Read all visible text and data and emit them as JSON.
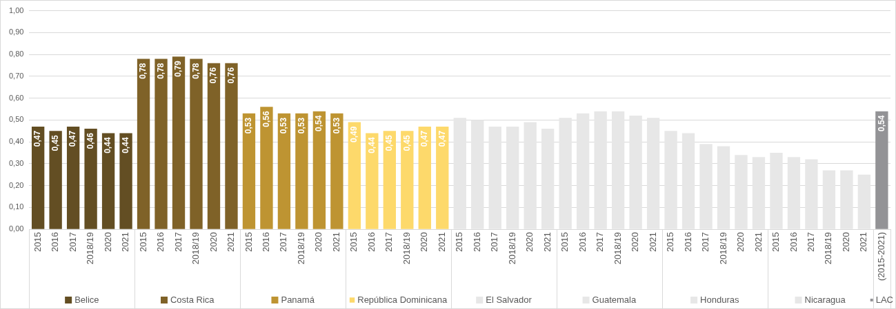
{
  "chart_data": {
    "type": "bar",
    "categories": [
      "2015",
      "2016",
      "2017",
      "2018/19",
      "2020",
      "2021",
      "2015",
      "2016",
      "2017",
      "2018/19",
      "2020",
      "2021",
      "2015",
      "2016",
      "2017",
      "2018/19",
      "2020",
      "2021",
      "2015",
      "2016",
      "2017",
      "2018/19",
      "2020",
      "2021",
      "2015",
      "2016",
      "2017",
      "2018/19",
      "2020",
      "2021",
      "2015",
      "2016",
      "2017",
      "2018/19",
      "2020",
      "2021",
      "2015",
      "2016",
      "2017",
      "2018/19",
      "2020",
      "2021",
      "2015",
      "2016",
      "2017",
      "2018/19",
      "2020",
      "2021",
      "(2015-2021)"
    ],
    "series": [
      {
        "name": "Belice",
        "color": "#634e23",
        "values": [
          0.47,
          0.45,
          0.47,
          0.46,
          0.44,
          0.44,
          null,
          null,
          null,
          null,
          null,
          null,
          null,
          null,
          null,
          null,
          null,
          null,
          null,
          null,
          null,
          null,
          null,
          null,
          null,
          null,
          null,
          null,
          null,
          null,
          null,
          null,
          null,
          null,
          null,
          null,
          null,
          null,
          null,
          null,
          null,
          null,
          null,
          null,
          null,
          null,
          null,
          null,
          null
        ],
        "value_labels": [
          "0,47",
          "0,45",
          "0,47",
          "0,46",
          "0,44",
          "0,44",
          null,
          null,
          null,
          null,
          null,
          null,
          null,
          null,
          null,
          null,
          null,
          null,
          null,
          null,
          null,
          null,
          null,
          null,
          null,
          null,
          null,
          null,
          null,
          null,
          null,
          null,
          null,
          null,
          null,
          null,
          null,
          null,
          null,
          null,
          null,
          null,
          null,
          null,
          null,
          null,
          null,
          null,
          null
        ]
      },
      {
        "name": "Costa Rica",
        "color": "#7f6228",
        "values": [
          null,
          null,
          null,
          null,
          null,
          null,
          0.78,
          0.78,
          0.79,
          0.78,
          0.76,
          0.76,
          null,
          null,
          null,
          null,
          null,
          null,
          null,
          null,
          null,
          null,
          null,
          null,
          null,
          null,
          null,
          null,
          null,
          null,
          null,
          null,
          null,
          null,
          null,
          null,
          null,
          null,
          null,
          null,
          null,
          null,
          null,
          null,
          null,
          null,
          null,
          null,
          null
        ],
        "value_labels": [
          null,
          null,
          null,
          null,
          null,
          null,
          "0,78",
          "0,78",
          "0,79",
          "0,78",
          "0,76",
          "0,76",
          null,
          null,
          null,
          null,
          null,
          null,
          null,
          null,
          null,
          null,
          null,
          null,
          null,
          null,
          null,
          null,
          null,
          null,
          null,
          null,
          null,
          null,
          null,
          null,
          null,
          null,
          null,
          null,
          null,
          null,
          null,
          null,
          null,
          null,
          null,
          null,
          null
        ]
      },
      {
        "name": "Panamá",
        "color": "#be9432",
        "values": [
          null,
          null,
          null,
          null,
          null,
          null,
          null,
          null,
          null,
          null,
          null,
          null,
          0.53,
          0.56,
          0.53,
          0.53,
          0.54,
          0.53,
          null,
          null,
          null,
          null,
          null,
          null,
          null,
          null,
          null,
          null,
          null,
          null,
          null,
          null,
          null,
          null,
          null,
          null,
          null,
          null,
          null,
          null,
          null,
          null,
          null,
          null,
          null,
          null,
          null,
          null,
          null
        ],
        "value_labels": [
          null,
          null,
          null,
          null,
          null,
          null,
          null,
          null,
          null,
          null,
          null,
          null,
          "0,53",
          "0,56",
          "0,53",
          "0,53",
          "0,54",
          "0,53",
          null,
          null,
          null,
          null,
          null,
          null,
          null,
          null,
          null,
          null,
          null,
          null,
          null,
          null,
          null,
          null,
          null,
          null,
          null,
          null,
          null,
          null,
          null,
          null,
          null,
          null,
          null,
          null,
          null,
          null,
          null
        ]
      },
      {
        "name": "República Dominicana",
        "color": "#fdd96b",
        "values": [
          null,
          null,
          null,
          null,
          null,
          null,
          null,
          null,
          null,
          null,
          null,
          null,
          null,
          null,
          null,
          null,
          null,
          null,
          0.49,
          0.44,
          0.45,
          0.45,
          0.47,
          0.47,
          null,
          null,
          null,
          null,
          null,
          null,
          null,
          null,
          null,
          null,
          null,
          null,
          null,
          null,
          null,
          null,
          null,
          null,
          null,
          null,
          null,
          null,
          null,
          null,
          null
        ],
        "value_labels": [
          null,
          null,
          null,
          null,
          null,
          null,
          null,
          null,
          null,
          null,
          null,
          null,
          null,
          null,
          null,
          null,
          null,
          null,
          "0,49",
          "0,44",
          "0,45",
          "0,45",
          "0,47",
          "0,47",
          null,
          null,
          null,
          null,
          null,
          null,
          null,
          null,
          null,
          null,
          null,
          null,
          null,
          null,
          null,
          null,
          null,
          null,
          null,
          null,
          null,
          null,
          null,
          null,
          null
        ]
      },
      {
        "name": "El Salvador",
        "color": "#e7e7e7",
        "values": [
          null,
          null,
          null,
          null,
          null,
          null,
          null,
          null,
          null,
          null,
          null,
          null,
          null,
          null,
          null,
          null,
          null,
          null,
          null,
          null,
          null,
          null,
          null,
          null,
          0.51,
          0.5,
          0.47,
          0.47,
          0.49,
          0.46,
          null,
          null,
          null,
          null,
          null,
          null,
          null,
          null,
          null,
          null,
          null,
          null,
          null,
          null,
          null,
          null,
          null,
          null,
          null
        ]
      },
      {
        "name": "Guatemala",
        "color": "#e7e7e7",
        "values": [
          null,
          null,
          null,
          null,
          null,
          null,
          null,
          null,
          null,
          null,
          null,
          null,
          null,
          null,
          null,
          null,
          null,
          null,
          null,
          null,
          null,
          null,
          null,
          null,
          null,
          null,
          null,
          null,
          null,
          null,
          0.51,
          0.53,
          0.54,
          0.54,
          0.52,
          0.51,
          null,
          null,
          null,
          null,
          null,
          null,
          null,
          null,
          null,
          null,
          null,
          null,
          null
        ]
      },
      {
        "name": "Honduras",
        "color": "#e7e7e7",
        "values": [
          null,
          null,
          null,
          null,
          null,
          null,
          null,
          null,
          null,
          null,
          null,
          null,
          null,
          null,
          null,
          null,
          null,
          null,
          null,
          null,
          null,
          null,
          null,
          null,
          null,
          null,
          null,
          null,
          null,
          null,
          null,
          null,
          null,
          null,
          null,
          null,
          0.45,
          0.44,
          0.39,
          0.38,
          0.34,
          0.33,
          null,
          null,
          null,
          null,
          null,
          null,
          null
        ]
      },
      {
        "name": "Nicaragua",
        "color": "#e7e7e7",
        "values": [
          null,
          null,
          null,
          null,
          null,
          null,
          null,
          null,
          null,
          null,
          null,
          null,
          null,
          null,
          null,
          null,
          null,
          null,
          null,
          null,
          null,
          null,
          null,
          null,
          null,
          null,
          null,
          null,
          null,
          null,
          null,
          null,
          null,
          null,
          null,
          null,
          null,
          null,
          null,
          null,
          null,
          null,
          0.35,
          0.33,
          0.32,
          0.27,
          0.27,
          0.25,
          null
        ]
      },
      {
        "name": "LAC",
        "color": "#939396",
        "values": [
          null,
          null,
          null,
          null,
          null,
          null,
          null,
          null,
          null,
          null,
          null,
          null,
          null,
          null,
          null,
          null,
          null,
          null,
          null,
          null,
          null,
          null,
          null,
          null,
          null,
          null,
          null,
          null,
          null,
          null,
          null,
          null,
          null,
          null,
          null,
          null,
          null,
          null,
          null,
          null,
          null,
          null,
          null,
          null,
          null,
          null,
          null,
          null,
          0.54
        ],
        "value_labels": [
          null,
          null,
          null,
          null,
          null,
          null,
          null,
          null,
          null,
          null,
          null,
          null,
          null,
          null,
          null,
          null,
          null,
          null,
          null,
          null,
          null,
          null,
          null,
          null,
          null,
          null,
          null,
          null,
          null,
          null,
          null,
          null,
          null,
          null,
          null,
          null,
          null,
          null,
          null,
          null,
          null,
          null,
          null,
          null,
          null,
          null,
          null,
          null,
          "0,54"
        ]
      }
    ],
    "ylim": [
      0,
      1
    ],
    "yticks": [
      {
        "value": 0,
        "label": "0,00"
      },
      {
        "value": 0.1,
        "label": "0,10"
      },
      {
        "value": 0.2,
        "label": "0,20"
      },
      {
        "value": 0.3,
        "label": "0,30"
      },
      {
        "value": 0.4,
        "label": "0,40"
      },
      {
        "value": 0.5,
        "label": "0,50"
      },
      {
        "value": 0.6,
        "label": "0,60"
      },
      {
        "value": 0.7,
        "label": "0,70"
      },
      {
        "value": 0.8,
        "label": "0,80"
      },
      {
        "value": 0.9,
        "label": "0,90"
      },
      {
        "value": 1,
        "label": "1,00"
      }
    ],
    "grid": "y",
    "legend": "bottom"
  }
}
